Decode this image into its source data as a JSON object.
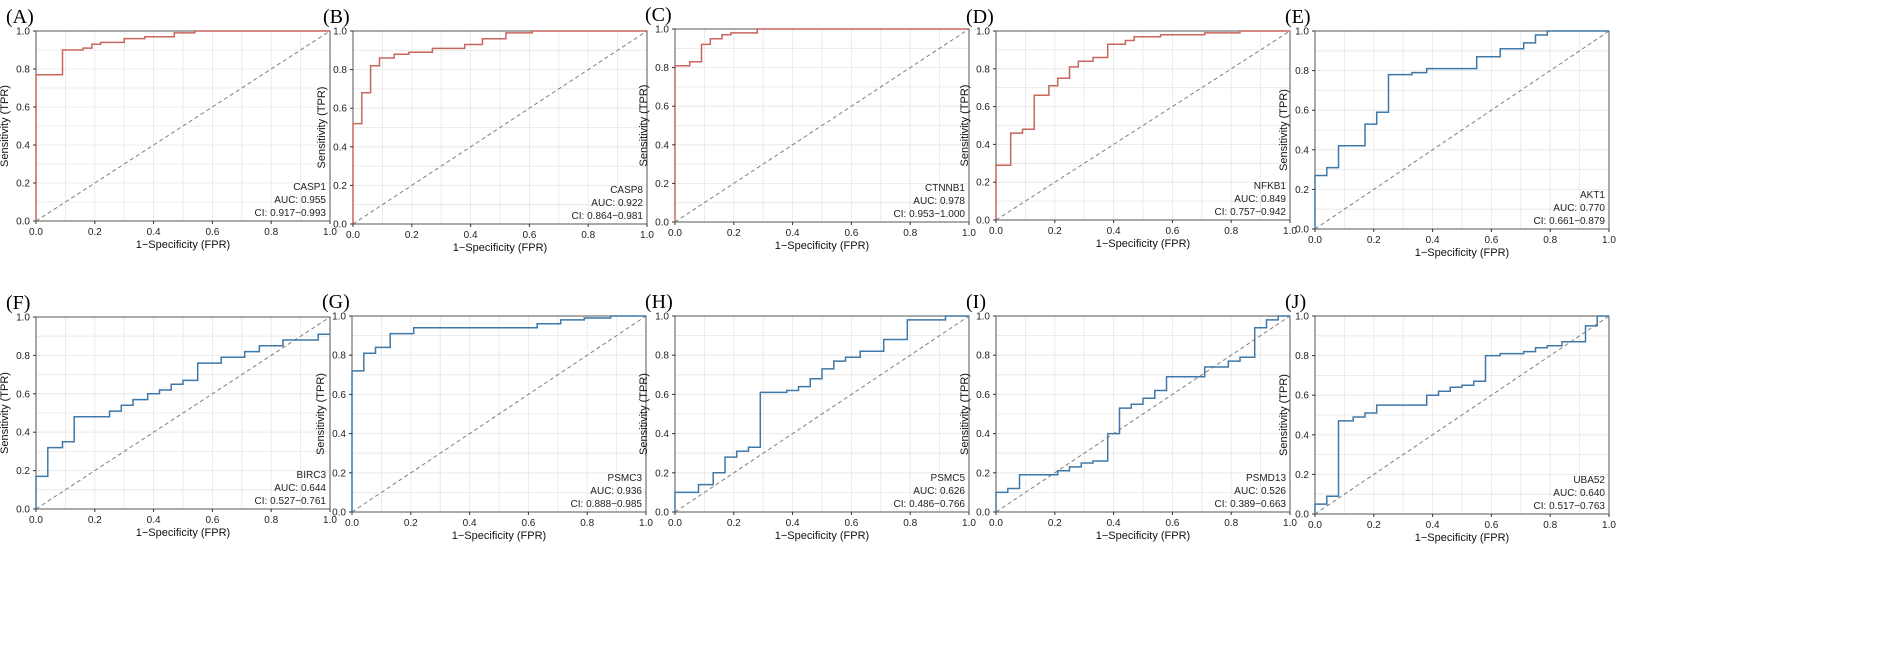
{
  "figure": {
    "description_free": true,
    "diagonal_color": "#7f7f7f",
    "grid_color": "#e6e6e6",
    "frame_color": "#555555",
    "tick_labels": [
      "0.0",
      "0.2",
      "0.4",
      "0.6",
      "0.8",
      "1.0"
    ]
  },
  "chart_data": [
    {
      "type": "line",
      "panel_label": "(A)",
      "gene": "CASP1",
      "auc_label": "AUC: 0.955",
      "ci_label": "CI: 0.917−0.993",
      "xlabel": "1−Specificity (FPR)",
      "ylabel": "Sensitivity (TPR)",
      "xlim": [
        0,
        1
      ],
      "ylim": [
        0,
        1
      ],
      "color": "#c8665e",
      "x": [
        0,
        0,
        0.09,
        0.09,
        0.16,
        0.16,
        0.19,
        0.19,
        0.22,
        0.22,
        0.3,
        0.3,
        0.37,
        0.37,
        0.47,
        0.47,
        0.54,
        0.54,
        1.0
      ],
      "y": [
        0,
        0.77,
        0.77,
        0.9,
        0.9,
        0.91,
        0.91,
        0.93,
        0.93,
        0.94,
        0.94,
        0.96,
        0.96,
        0.97,
        0.97,
        0.99,
        0.99,
        1.0,
        1.0
      ]
    },
    {
      "type": "line",
      "panel_label": "(B)",
      "gene": "CASP8",
      "auc_label": "AUC: 0.922",
      "ci_label": "CI: 0.864−0.981",
      "xlabel": "1−Specificity (FPR)",
      "ylabel": "Sensitivity (TPR)",
      "xlim": [
        0,
        1
      ],
      "ylim": [
        0,
        1
      ],
      "color": "#c8665e",
      "x": [
        0,
        0,
        0.03,
        0.03,
        0.06,
        0.06,
        0.09,
        0.09,
        0.14,
        0.14,
        0.19,
        0.19,
        0.27,
        0.27,
        0.38,
        0.38,
        0.44,
        0.44,
        0.52,
        0.52,
        0.61,
        0.61,
        1.0
      ],
      "y": [
        0,
        0.52,
        0.52,
        0.68,
        0.68,
        0.82,
        0.82,
        0.86,
        0.86,
        0.88,
        0.88,
        0.89,
        0.89,
        0.91,
        0.91,
        0.93,
        0.93,
        0.96,
        0.96,
        0.99,
        0.99,
        1.0,
        1.0
      ]
    },
    {
      "type": "line",
      "panel_label": "(C)",
      "gene": "CTNNB1",
      "auc_label": "AUC: 0.978",
      "ci_label": "CI: 0.953−1.000",
      "xlabel": "1−Specificity (FPR)",
      "ylabel": "Sensitivity (TPR)",
      "xlim": [
        0,
        1
      ],
      "ylim": [
        0,
        1
      ],
      "color": "#c8665e",
      "x": [
        0,
        0,
        0.05,
        0.05,
        0.09,
        0.09,
        0.12,
        0.12,
        0.16,
        0.16,
        0.19,
        0.19,
        0.28,
        0.28,
        1.0
      ],
      "y": [
        0,
        0.81,
        0.81,
        0.83,
        0.83,
        0.92,
        0.92,
        0.95,
        0.95,
        0.97,
        0.97,
        0.98,
        0.98,
        1.0,
        1.0
      ]
    },
    {
      "type": "line",
      "panel_label": "(D)",
      "gene": "NFKB1",
      "auc_label": "AUC: 0.849",
      "ci_label": "CI: 0.757−0.942",
      "xlabel": "1−Specificity (FPR)",
      "ylabel": "Sensitivity (TPR)",
      "xlim": [
        0,
        1
      ],
      "ylim": [
        0,
        1
      ],
      "color": "#c8665e",
      "x": [
        0,
        0,
        0.05,
        0.05,
        0.09,
        0.09,
        0.13,
        0.13,
        0.18,
        0.18,
        0.21,
        0.21,
        0.25,
        0.25,
        0.28,
        0.28,
        0.33,
        0.33,
        0.38,
        0.38,
        0.44,
        0.44,
        0.47,
        0.47,
        0.56,
        0.56,
        0.71,
        0.71,
        0.83,
        0.83,
        1.0
      ],
      "y": [
        0,
        0.29,
        0.29,
        0.46,
        0.46,
        0.48,
        0.48,
        0.66,
        0.66,
        0.71,
        0.71,
        0.75,
        0.75,
        0.81,
        0.81,
        0.84,
        0.84,
        0.86,
        0.86,
        0.93,
        0.93,
        0.95,
        0.95,
        0.97,
        0.97,
        0.98,
        0.98,
        0.99,
        0.99,
        1.0,
        1.0
      ]
    },
    {
      "type": "line",
      "panel_label": "(E)",
      "gene": "AKT1",
      "auc_label": "AUC: 0.770",
      "ci_label": "CI: 0.661−0.879",
      "xlabel": "1−Specificity (FPR)",
      "ylabel": "Sensitivity (TPR)",
      "xlim": [
        0,
        1
      ],
      "ylim": [
        0,
        1
      ],
      "color": "#3e78a8",
      "x": [
        0,
        0,
        0.04,
        0.04,
        0.08,
        0.08,
        0.17,
        0.17,
        0.21,
        0.21,
        0.25,
        0.25,
        0.33,
        0.33,
        0.38,
        0.38,
        0.55,
        0.55,
        0.63,
        0.63,
        0.71,
        0.71,
        0.75,
        0.75,
        0.79,
        0.79,
        1.0
      ],
      "y": [
        0,
        0.27,
        0.27,
        0.31,
        0.31,
        0.42,
        0.42,
        0.53,
        0.53,
        0.59,
        0.59,
        0.78,
        0.78,
        0.79,
        0.79,
        0.81,
        0.81,
        0.87,
        0.87,
        0.91,
        0.91,
        0.94,
        0.94,
        0.98,
        0.98,
        1.0,
        1.0
      ]
    },
    {
      "type": "line",
      "panel_label": "(F)",
      "gene": "BIRC3",
      "auc_label": "AUC: 0.644",
      "ci_label": "CI: 0.527−0.761",
      "xlabel": "1−Specificity (FPR)",
      "ylabel": "Sensitivity (TPR)",
      "xlim": [
        0,
        1
      ],
      "ylim": [
        0,
        1
      ],
      "color": "#3e78a8",
      "x": [
        0,
        0,
        0.04,
        0.04,
        0.09,
        0.09,
        0.13,
        0.13,
        0.25,
        0.25,
        0.29,
        0.29,
        0.33,
        0.33,
        0.38,
        0.38,
        0.42,
        0.42,
        0.46,
        0.46,
        0.5,
        0.5,
        0.55,
        0.55,
        0.63,
        0.63,
        0.71,
        0.71,
        0.76,
        0.76,
        0.84,
        0.84,
        0.96,
        0.96,
        1.0
      ],
      "y": [
        0,
        0.17,
        0.17,
        0.32,
        0.32,
        0.35,
        0.35,
        0.48,
        0.48,
        0.51,
        0.51,
        0.54,
        0.54,
        0.57,
        0.57,
        0.6,
        0.6,
        0.62,
        0.62,
        0.65,
        0.65,
        0.67,
        0.67,
        0.76,
        0.76,
        0.79,
        0.79,
        0.82,
        0.82,
        0.85,
        0.85,
        0.88,
        0.88,
        0.91,
        0.91
      ]
    },
    {
      "type": "line",
      "panel_label": "(G)",
      "gene": "PSMC3",
      "auc_label": "AUC: 0.936",
      "ci_label": "CI: 0.888−0.985",
      "xlabel": "1−Specificity (FPR)",
      "ylabel": "Sensitivity (TPR)",
      "xlim": [
        0,
        1
      ],
      "ylim": [
        0,
        1
      ],
      "color": "#3e78a8",
      "x": [
        0,
        0,
        0.04,
        0.04,
        0.08,
        0.08,
        0.13,
        0.13,
        0.21,
        0.21,
        0.63,
        0.63,
        0.71,
        0.71,
        0.79,
        0.79,
        0.88,
        0.88,
        1.0
      ],
      "y": [
        0,
        0.72,
        0.72,
        0.81,
        0.81,
        0.84,
        0.84,
        0.91,
        0.91,
        0.94,
        0.94,
        0.96,
        0.96,
        0.98,
        0.98,
        0.99,
        0.99,
        1.0,
        1.0
      ]
    },
    {
      "type": "line",
      "panel_label": "(H)",
      "gene": "PSMC5",
      "auc_label": "AUC: 0.626",
      "ci_label": "CI: 0.486−0.766",
      "xlabel": "1−Specificity (FPR)",
      "ylabel": "Sensitivity (TPR)",
      "xlim": [
        0,
        1
      ],
      "ylim": [
        0,
        1
      ],
      "color": "#3e78a8",
      "x": [
        0,
        0,
        0.08,
        0.08,
        0.13,
        0.13,
        0.17,
        0.17,
        0.21,
        0.21,
        0.25,
        0.25,
        0.29,
        0.29,
        0.38,
        0.38,
        0.42,
        0.42,
        0.46,
        0.46,
        0.5,
        0.5,
        0.54,
        0.54,
        0.58,
        0.58,
        0.63,
        0.63,
        0.71,
        0.71,
        0.79,
        0.79,
        0.92,
        0.92,
        1.0
      ],
      "y": [
        0,
        0.1,
        0.1,
        0.14,
        0.14,
        0.2,
        0.2,
        0.28,
        0.28,
        0.31,
        0.31,
        0.33,
        0.33,
        0.61,
        0.61,
        0.62,
        0.62,
        0.64,
        0.64,
        0.68,
        0.68,
        0.73,
        0.73,
        0.77,
        0.77,
        0.79,
        0.79,
        0.82,
        0.82,
        0.88,
        0.88,
        0.98,
        0.98,
        1.0,
        1.0
      ]
    },
    {
      "type": "line",
      "panel_label": "(I)",
      "gene": "PSMD13",
      "auc_label": "AUC: 0.526",
      "ci_label": "CI: 0.389−0.663",
      "xlabel": "1−Specificity (FPR)",
      "ylabel": "Sensitivity (TPR)",
      "xlim": [
        0,
        1
      ],
      "ylim": [
        0,
        1
      ],
      "color": "#3e78a8",
      "x": [
        0,
        0,
        0.04,
        0.04,
        0.08,
        0.08,
        0.21,
        0.21,
        0.25,
        0.25,
        0.29,
        0.29,
        0.33,
        0.33,
        0.38,
        0.38,
        0.42,
        0.42,
        0.46,
        0.46,
        0.5,
        0.5,
        0.54,
        0.54,
        0.58,
        0.58,
        0.71,
        0.71,
        0.79,
        0.79,
        0.83,
        0.83,
        0.88,
        0.88,
        0.92,
        0.92,
        0.96,
        0.96,
        1.0
      ],
      "y": [
        0,
        0.1,
        0.1,
        0.12,
        0.12,
        0.19,
        0.19,
        0.21,
        0.21,
        0.23,
        0.23,
        0.25,
        0.25,
        0.26,
        0.26,
        0.4,
        0.4,
        0.53,
        0.53,
        0.55,
        0.55,
        0.58,
        0.58,
        0.62,
        0.62,
        0.69,
        0.69,
        0.74,
        0.74,
        0.77,
        0.77,
        0.79,
        0.79,
        0.94,
        0.94,
        0.98,
        0.98,
        1.0,
        1.0
      ]
    },
    {
      "type": "line",
      "panel_label": "(J)",
      "gene": "UBA52",
      "auc_label": "AUC: 0.640",
      "ci_label": "CI: 0.517−0.763",
      "xlabel": "1−Specificity (FPR)",
      "ylabel": "Sensitivity (TPR)",
      "xlim": [
        0,
        1
      ],
      "ylim": [
        0,
        1
      ],
      "color": "#3e78a8",
      "x": [
        0,
        0,
        0.04,
        0.04,
        0.08,
        0.08,
        0.13,
        0.13,
        0.17,
        0.17,
        0.21,
        0.21,
        0.38,
        0.38,
        0.42,
        0.42,
        0.46,
        0.46,
        0.5,
        0.5,
        0.54,
        0.54,
        0.58,
        0.58,
        0.63,
        0.63,
        0.71,
        0.71,
        0.75,
        0.75,
        0.79,
        0.79,
        0.84,
        0.84,
        0.92,
        0.92,
        0.96,
        0.96,
        1.0
      ],
      "y": [
        0,
        0.05,
        0.05,
        0.09,
        0.09,
        0.47,
        0.47,
        0.49,
        0.49,
        0.51,
        0.51,
        0.55,
        0.55,
        0.6,
        0.6,
        0.62,
        0.62,
        0.64,
        0.64,
        0.65,
        0.65,
        0.67,
        0.67,
        0.8,
        0.8,
        0.81,
        0.81,
        0.82,
        0.82,
        0.84,
        0.84,
        0.85,
        0.85,
        0.87,
        0.87,
        0.95,
        0.95,
        1.0,
        1.0
      ]
    }
  ]
}
